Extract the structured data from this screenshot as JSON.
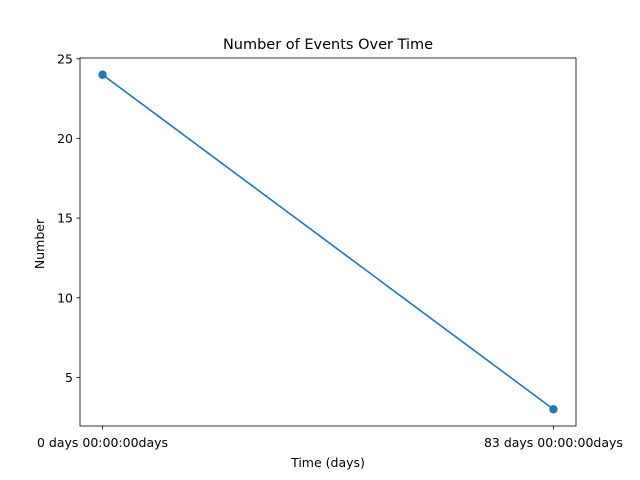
{
  "chart_data": {
    "type": "line",
    "title": "Number of Events Over Time",
    "xlabel": "Time (days)",
    "ylabel": "Number",
    "x": [
      0,
      83
    ],
    "x_tick_labels": [
      "0 days 00:00:00days",
      "83 days 00:00:00days"
    ],
    "series": [
      {
        "values": [
          24,
          3
        ],
        "color": "#1f77b4",
        "marker": "circle"
      }
    ],
    "xlim": [
      -4.15,
      87.15
    ],
    "ylim": [
      1.95,
      25.05
    ],
    "y_ticks": [
      5,
      10,
      15,
      20,
      25
    ],
    "grid": false
  }
}
